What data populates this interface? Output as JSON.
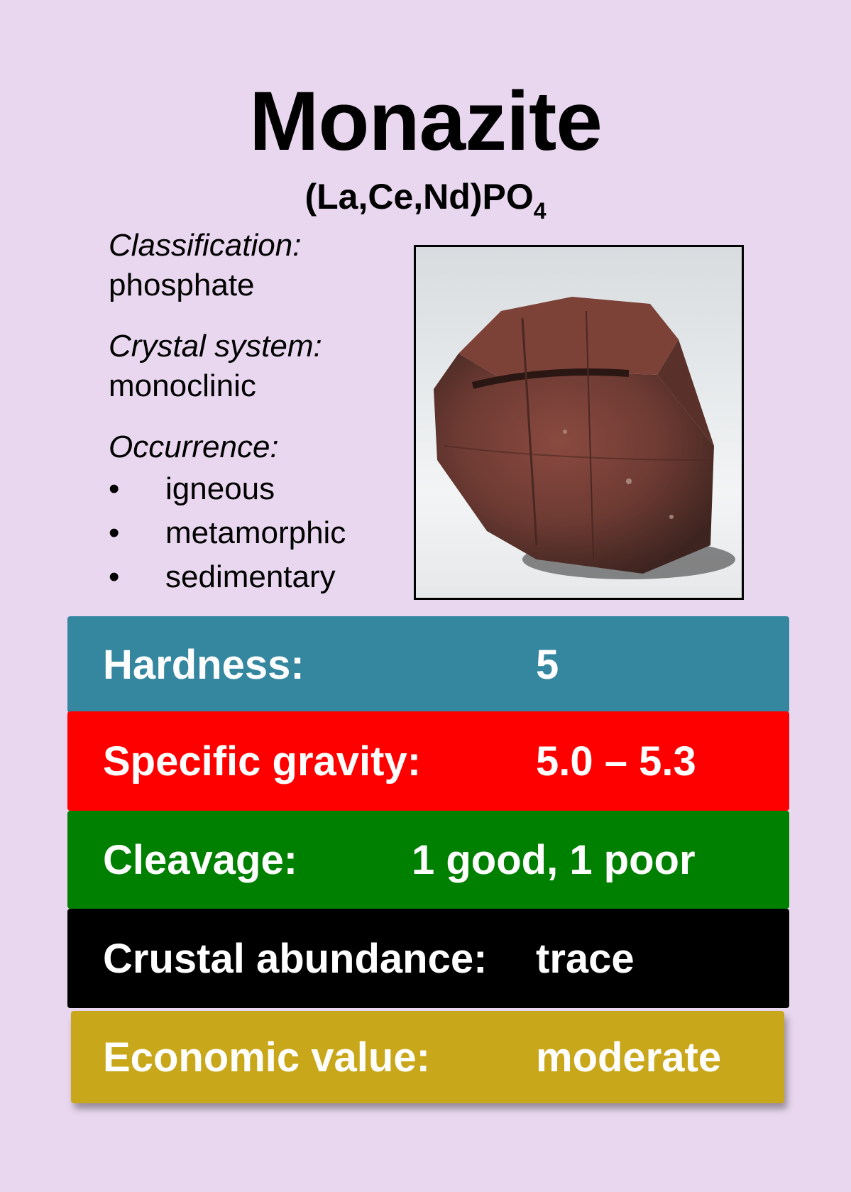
{
  "title": "Monazite",
  "formula": {
    "main": "(La,Ce,Nd)PO",
    "subscript": "4"
  },
  "classification": {
    "label": "Classification:",
    "value": "phosphate"
  },
  "crystal_system": {
    "label": "Crystal system:",
    "value": "monoclinic"
  },
  "occurrence": {
    "label": "Occurrence:",
    "bullet": "•",
    "items": [
      "igneous",
      "metamorphic",
      "sedimentary"
    ]
  },
  "properties": [
    {
      "label": "Hardness:",
      "value": "5",
      "color": "#35879f"
    },
    {
      "label": "Specific gravity:",
      "value": "5.0 – 5.3",
      "color": "#ff0000"
    },
    {
      "label": "Cleavage:",
      "value": "1 good, 1 poor",
      "color": "#008000"
    },
    {
      "label": "Crustal abundance:",
      "value": "trace",
      "color": "#000000"
    },
    {
      "label": "Economic value:",
      "value": "moderate",
      "color": "#c9a71a"
    }
  ],
  "colors": {
    "background": "#e9d7ef",
    "specimen": "#6e3b33"
  }
}
